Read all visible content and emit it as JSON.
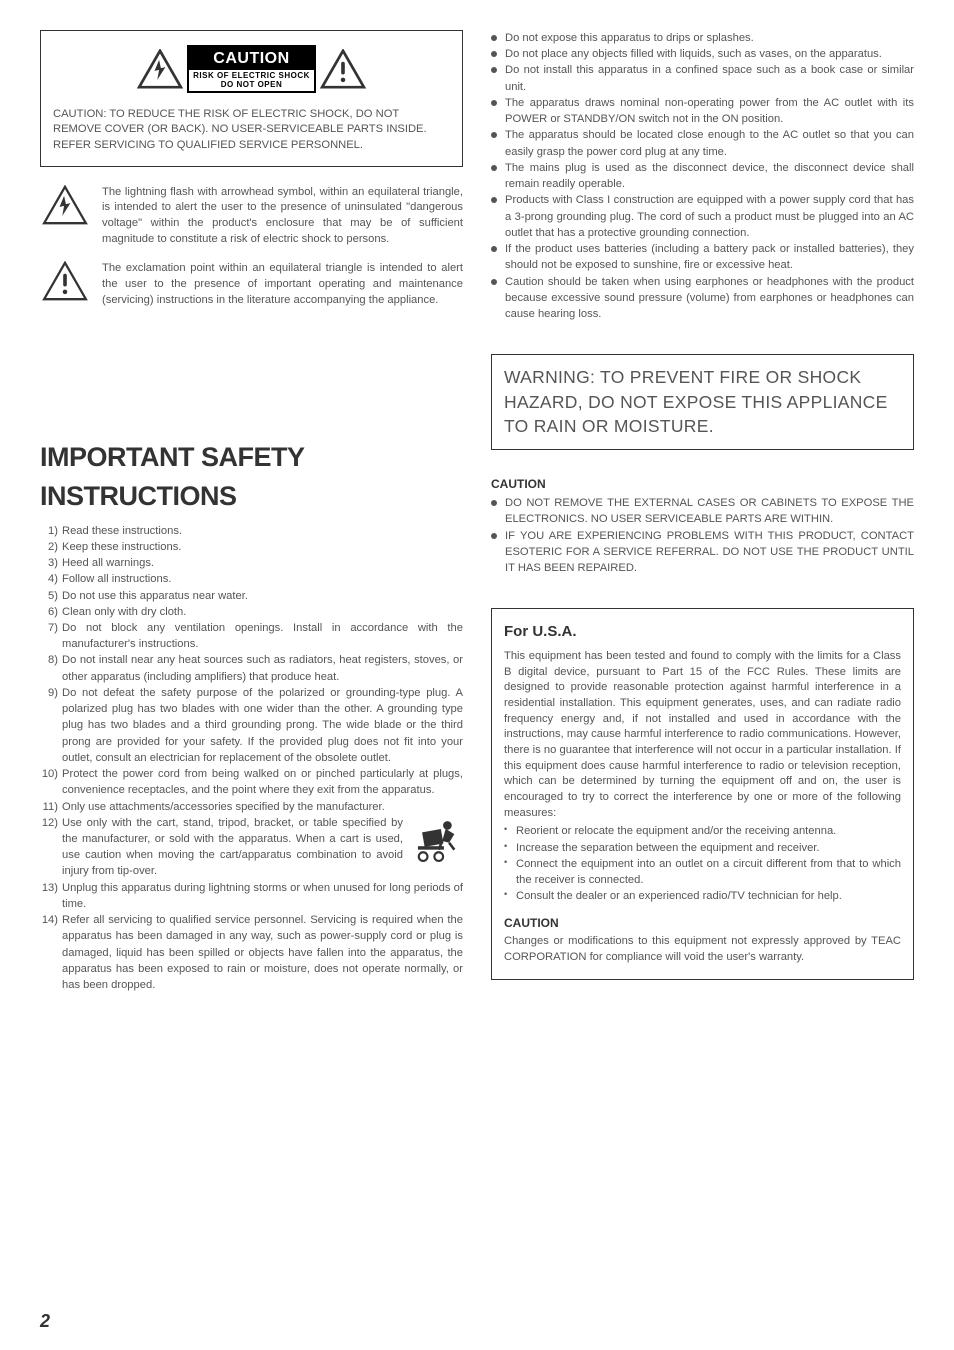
{
  "pageNumber": "2",
  "cautionLabel": {
    "title": "CAUTION",
    "sub1": "RISK OF ELECTRIC SHOCK",
    "sub2": "DO NOT OPEN"
  },
  "cautionBoxText": "CAUTION: TO REDUCE THE RISK OF ELECTRIC SHOCK, DO NOT REMOVE COVER (OR BACK). NO USER-SERVICEABLE PARTS INSIDE. REFER SERVICING TO QUALIFIED SERVICE PERSONNEL.",
  "symbolPara1": "The lightning flash with arrowhead symbol, within an equilateral triangle, is intended to alert the user to the presence of uninsulated \"dangerous voltage\" within the product's enclosure that may be of sufficient magnitude to constitute a risk of electric shock to persons.",
  "symbolPara2": "The exclamation point within an equilateral triangle is intended to alert the user to the presence of important operating and maintenance (servicing) instructions in the literature accompanying the appliance.",
  "mainTitle": "IMPORTANT SAFETY INSTRUCTIONS",
  "safetyItems": [
    "Read these instructions.",
    "Keep these instructions.",
    "Heed all warnings.",
    "Follow all instructions.",
    "Do not use this apparatus near water.",
    "Clean only with dry cloth.",
    "Do not block any ventilation openings. Install in accordance with the manufacturer's instructions.",
    "Do not install near any heat sources such as radiators, heat registers, stoves, or other apparatus (including amplifiers) that produce heat.",
    "Do not defeat the safety purpose of the polarized or grounding-type plug. A polarized plug has two blades with one wider than the other. A grounding type plug has two blades and a third grounding prong. The wide blade or the third prong are provided for your safety. If the provided plug does not fit into your outlet, consult an electrician for replacement of the obsolete outlet.",
    "Protect the power cord from being walked on or pinched particularly at plugs, convenience receptacles, and the point where they exit from the apparatus.",
    "Only use attachments/accessories specified by the manufacturer.",
    "Use only with the cart, stand, tripod, bracket, or table specified by the manufacturer, or sold with the apparatus. When a cart is used, use caution when moving the cart/apparatus combination to avoid injury from tip-over.",
    "Unplug this apparatus during lightning storms or when unused for long periods of time.",
    "Refer all servicing to qualified service personnel. Servicing is required when the apparatus has been damaged in any way, such as power-supply cord or plug is damaged, liquid has been spilled or objects have fallen into the apparatus, the apparatus has been exposed to rain or moisture, does not operate normally, or has been dropped."
  ],
  "rightBullets": [
    "Do not expose this apparatus to drips or splashes.",
    "Do not place any objects filled with liquids, such as vases, on the apparatus.",
    "Do not install this apparatus in a confined space such as a book case or similar unit.",
    "The apparatus draws nominal non-operating power from the AC outlet with its POWER or STANDBY/ON switch not in the ON position.",
    "The apparatus should be located close enough to the AC outlet so that you can easily grasp the power cord plug at any time.",
    "The mains plug is used as the disconnect device, the disconnect device shall remain readily operable.",
    "Products with Class I construction are equipped with a power supply cord that has a 3-prong grounding plug. The cord of such a product must be plugged into an AC outlet that has a protective grounding connection.",
    "If the product uses batteries (including a battery pack or installed batteries), they should not be exposed to sunshine, fire or excessive heat.",
    "Caution should be taken when using earphones or headphones with the product because excessive sound pressure (volume) from earphones or headphones can cause hearing loss."
  ],
  "warningBox": "WARNING: TO PREVENT FIRE OR SHOCK HAZARD, DO NOT EXPOSE THIS APPLIANCE TO RAIN OR MOISTURE.",
  "cautionHead": "CAUTION",
  "cautionBullets": [
    "DO NOT REMOVE THE EXTERNAL CASES OR CABINETS TO EXPOSE THE ELECTRONICS. NO USER SERVICEABLE PARTS ARE WITHIN.",
    "IF YOU ARE EXPERIENCING PROBLEMS WITH THIS PRODUCT, CONTACT ESOTERIC FOR A SERVICE REFERRAL. DO NOT USE THE PRODUCT UNTIL IT HAS BEEN REPAIRED."
  ],
  "usaTitle": "For U.S.A.",
  "usaIntro": "This equipment has been tested and found to comply with the limits for a Class B digital device, pursuant to Part 15 of the FCC Rules. These limits are designed to provide reasonable protection against harmful interference in a residential installation. This equipment generates, uses, and can radiate radio frequency energy and, if not installed and used in accordance with the instructions, may cause harmful interference to radio communications. However, there is no guarantee that interference will not occur in a particular installation. If this equipment does cause harmful interference to radio or television reception, which can be determined by turning the equipment off and on, the user is encouraged to try to correct the interference by one or more of the following measures:",
  "usaMeasures": [
    "Reorient or relocate the equipment and/or the receiving antenna.",
    "Increase the separation between the equipment and receiver.",
    "Connect the equipment into an outlet on a circuit different from that to which the receiver is connected.",
    "Consult the dealer or an experienced radio/TV technician for help."
  ],
  "usaCautionHead": "CAUTION",
  "usaCautionText": "Changes or modifications to this equipment not expressly approved by TEAC CORPORATION for compliance will void the user's warranty.",
  "colors": {
    "text": "#555555",
    "border": "#333333",
    "black": "#000000",
    "white": "#ffffff"
  }
}
